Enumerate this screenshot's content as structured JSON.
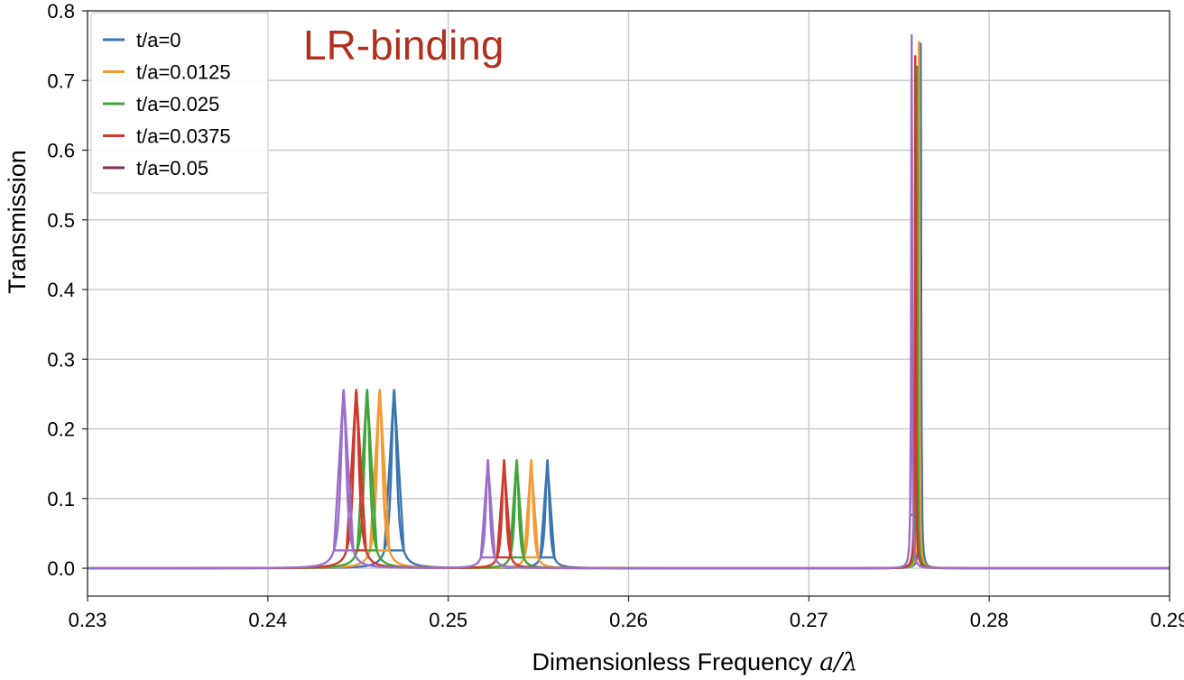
{
  "chart_data": {
    "type": "line",
    "title": "",
    "xlabel": "Dimensionless Frequency",
    "xlabel_math": "a/λ",
    "ylabel": "Transmission",
    "xlim": [
      0.23,
      0.29
    ],
    "ylim": [
      -0.04,
      0.8
    ],
    "xticks": [
      "0.23",
      "0.24",
      "0.25",
      "0.26",
      "0.27",
      "0.28",
      "0.29"
    ],
    "yticks": [
      "0.0",
      "0.1",
      "0.2",
      "0.3",
      "0.4",
      "0.5",
      "0.6",
      "0.7",
      "0.8"
    ],
    "grid": true,
    "legend_position": "top-left",
    "annotation": "LR-binding",
    "series": [
      {
        "name": "t/a=0",
        "color": "#3a75b0",
        "peaks": [
          {
            "x": 0.247,
            "y": 0.256,
            "width": 0.00018
          },
          {
            "x": 0.2555,
            "y": 0.155,
            "width": 0.00013
          },
          {
            "x": 0.2762,
            "y": 0.753,
            "width": 3e-05
          }
        ]
      },
      {
        "name": "t/a=0.0125",
        "color": "#f39a35",
        "peaks": [
          {
            "x": 0.2462,
            "y": 0.256,
            "width": 0.00018
          },
          {
            "x": 0.2546,
            "y": 0.155,
            "width": 0.00013
          },
          {
            "x": 0.2761,
            "y": 0.755,
            "width": 3e-05
          }
        ]
      },
      {
        "name": "t/a=0.025",
        "color": "#3fa53b",
        "peaks": [
          {
            "x": 0.2455,
            "y": 0.256,
            "width": 0.00018
          },
          {
            "x": 0.2538,
            "y": 0.155,
            "width": 0.00013
          },
          {
            "x": 0.276,
            "y": 0.72,
            "width": 3e-05
          }
        ]
      },
      {
        "name": "t/a=0.0375",
        "color": "#cc3a2b",
        "peaks": [
          {
            "x": 0.2449,
            "y": 0.256,
            "width": 0.00018
          },
          {
            "x": 0.2531,
            "y": 0.155,
            "width": 0.00013
          },
          {
            "x": 0.2759,
            "y": 0.735,
            "width": 3e-05
          }
        ]
      },
      {
        "name": "t/a=0.05",
        "color": "#9b6fc6",
        "legend_color": "#7e2d5e",
        "peaks": [
          {
            "x": 0.2442,
            "y": 0.256,
            "width": 0.00018
          },
          {
            "x": 0.2522,
            "y": 0.155,
            "width": 0.00013
          },
          {
            "x": 0.2757,
            "y": 0.765,
            "width": 3e-05
          }
        ]
      }
    ]
  }
}
